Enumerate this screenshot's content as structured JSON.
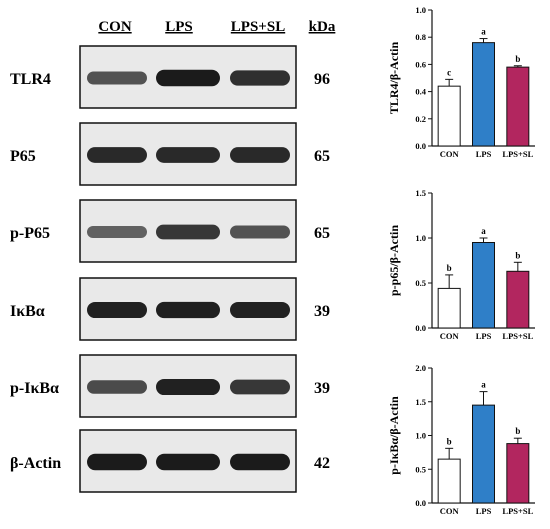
{
  "blot": {
    "headers": {
      "lanes": [
        "CON",
        "LPS",
        "LPS+SL"
      ],
      "kda": "kDa"
    },
    "rows": [
      {
        "label": "TLR4",
        "kda": "96",
        "intensities": [
          0.55,
          0.95,
          0.8
        ]
      },
      {
        "label": "P65",
        "kda": "65",
        "intensities": [
          0.85,
          0.85,
          0.85
        ]
      },
      {
        "label": "p-P65",
        "kda": "65",
        "intensities": [
          0.45,
          0.75,
          0.55
        ]
      },
      {
        "label": "IκBα",
        "kda": "39",
        "intensities": [
          0.9,
          0.92,
          0.9
        ]
      },
      {
        "label": "p-IκBα",
        "kda": "39",
        "intensities": [
          0.6,
          0.9,
          0.75
        ]
      },
      {
        "label": "β-Actin",
        "kda": "42",
        "intensities": [
          0.95,
          0.95,
          0.95
        ]
      }
    ]
  },
  "colors": {
    "con": "#ffffff",
    "lps": "#2f7fc8",
    "lps_sl": "#b2265f",
    "band": "#141414"
  },
  "chart_data": [
    {
      "type": "bar",
      "categories": [
        "CON",
        "LPS",
        "LPS+SL"
      ],
      "values": [
        0.44,
        0.76,
        0.58
      ],
      "errors": [
        0.05,
        0.03,
        0.01
      ],
      "letters": [
        "c",
        "a",
        "b"
      ],
      "ylabel": "TLR4/β-Actin",
      "ylim": [
        0,
        1.0
      ],
      "yticks": [
        "0.0",
        "0.2",
        "0.4",
        "0.6",
        "0.8",
        "1.0"
      ]
    },
    {
      "type": "bar",
      "categories": [
        "CON",
        "LPS",
        "LPS+SL"
      ],
      "values": [
        0.44,
        0.95,
        0.63
      ],
      "errors": [
        0.15,
        0.05,
        0.1
      ],
      "letters": [
        "b",
        "a",
        "b"
      ],
      "ylabel": "p-p65/β-Actin",
      "ylim": [
        0,
        1.5
      ],
      "yticks": [
        "0.0",
        "0.5",
        "1.0",
        "1.5"
      ]
    },
    {
      "type": "bar",
      "categories": [
        "CON",
        "LPS",
        "LPS+SL"
      ],
      "values": [
        0.65,
        1.45,
        0.88
      ],
      "errors": [
        0.16,
        0.2,
        0.08
      ],
      "letters": [
        "b",
        "a",
        "b"
      ],
      "ylabel": "p-IκBα/β-Actin",
      "ylim": [
        0,
        2.0
      ],
      "yticks": [
        "0.0",
        "0.5",
        "1.0",
        "1.5",
        "2.0"
      ]
    }
  ]
}
